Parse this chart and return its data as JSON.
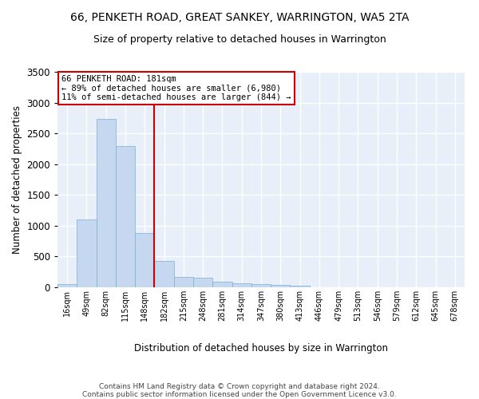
{
  "title": "66, PENKETH ROAD, GREAT SANKEY, WARRINGTON, WA5 2TA",
  "subtitle": "Size of property relative to detached houses in Warrington",
  "xlabel": "Distribution of detached houses by size in Warrington",
  "ylabel": "Number of detached properties",
  "bar_values": [
    55,
    1100,
    2730,
    2290,
    880,
    430,
    165,
    160,
    90,
    65,
    55,
    35,
    25,
    5,
    5,
    2,
    1,
    1,
    0,
    0,
    0
  ],
  "bar_labels": [
    "16sqm",
    "49sqm",
    "82sqm",
    "115sqm",
    "148sqm",
    "182sqm",
    "215sqm",
    "248sqm",
    "281sqm",
    "314sqm",
    "347sqm",
    "380sqm",
    "413sqm",
    "446sqm",
    "479sqm",
    "513sqm",
    "546sqm",
    "579sqm",
    "612sqm",
    "645sqm",
    "678sqm"
  ],
  "bar_color": "#C5D8F0",
  "bar_edge_color": "#7AAFD4",
  "vline_color": "#CC0000",
  "annotation_text": "66 PENKETH ROAD: 181sqm\n← 89% of detached houses are smaller (6,980)\n11% of semi-detached houses are larger (844) →",
  "annotation_box_color": "#CC0000",
  "ylim": [
    0,
    3500
  ],
  "yticks": [
    0,
    500,
    1000,
    1500,
    2000,
    2500,
    3000,
    3500
  ],
  "background_color": "#E8EFF8",
  "grid_color": "#FFFFFF",
  "footer": "Contains HM Land Registry data © Crown copyright and database right 2024.\nContains public sector information licensed under the Open Government Licence v3.0.",
  "title_fontsize": 10,
  "subtitle_fontsize": 9,
  "footer_fontsize": 6.5
}
